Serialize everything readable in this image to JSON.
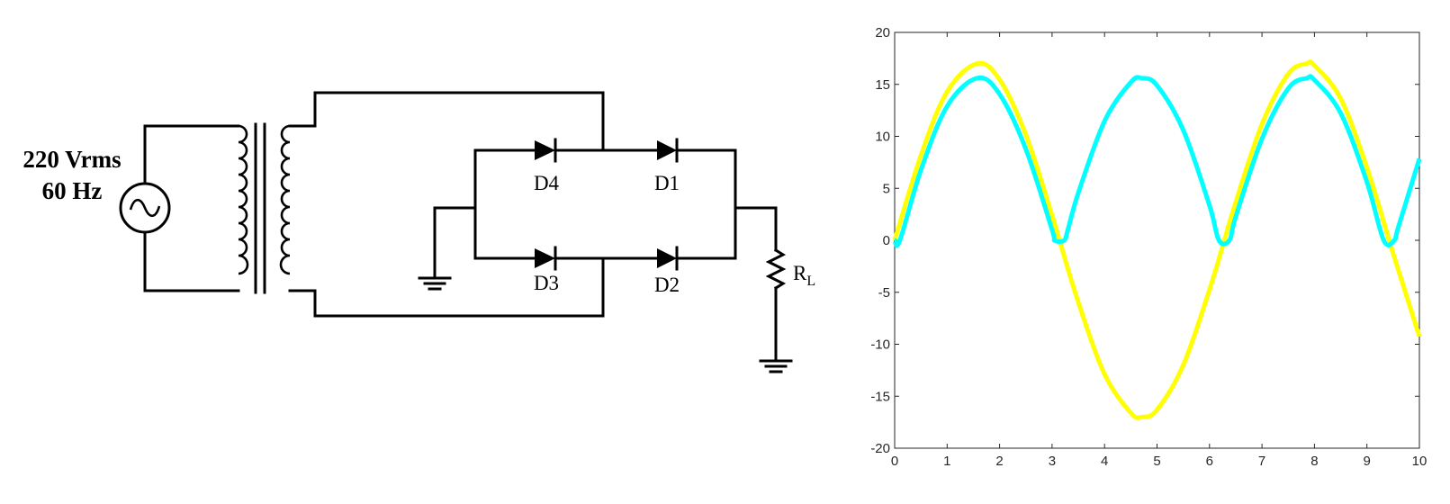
{
  "circuit": {
    "source_voltage": "220 Vrms",
    "source_frequency": "60 Hz",
    "diodes": [
      "D4",
      "D1",
      "D3",
      "D2"
    ],
    "load_label_main": "R",
    "load_label_sub": "L"
  },
  "chart_data": {
    "type": "line",
    "title": "",
    "xlabel": "",
    "ylabel": "",
    "xlim": [
      0,
      10
    ],
    "ylim": [
      -20,
      20
    ],
    "xticks": [
      0,
      1,
      2,
      3,
      4,
      5,
      6,
      7,
      8,
      9,
      10
    ],
    "yticks": [
      20,
      15,
      10,
      5,
      0,
      -5,
      -10,
      -15,
      -20
    ],
    "grid": false,
    "series": [
      {
        "color": "#ffff00",
        "x": [
          0,
          0.5,
          1,
          1.5708,
          2,
          2.5,
          3,
          3.1416,
          3.5,
          4,
          4.5,
          4.7124,
          5,
          5.5,
          6,
          6.2832,
          6.5,
          7,
          7.5,
          7.854,
          8,
          8.5,
          9,
          9.4248,
          9.5,
          10
        ],
        "y": [
          0,
          8.15,
          14.3,
          17.0,
          15.46,
          10.17,
          2.4,
          0,
          -5.96,
          -12.87,
          -16.6,
          -17.0,
          -16.3,
          -12.0,
          -4.75,
          0,
          3.66,
          11.17,
          16.0,
          17.0,
          16.82,
          13.63,
          7.0,
          0,
          -1.27,
          -9.25
        ]
      },
      {
        "color": "#00ffff",
        "x": [
          0,
          0.1,
          0.5,
          1,
          1.5708,
          2,
          2.5,
          3.0,
          3.05,
          3.23,
          3.3,
          3.5,
          4,
          4.5,
          4.7124,
          5,
          5.5,
          6,
          6.18,
          6.38,
          6.5,
          7,
          7.5,
          7.854,
          8,
          8.5,
          9,
          9.32,
          9.52,
          9.6,
          10
        ],
        "y": [
          0,
          0,
          6.75,
          12.9,
          15.6,
          14.06,
          8.77,
          1.0,
          0,
          0,
          1.0,
          4.56,
          11.47,
          15.2,
          15.6,
          14.9,
          10.6,
          3.35,
          0,
          0,
          2.26,
          9.77,
          14.6,
          15.6,
          15.42,
          12.23,
          5.6,
          0,
          0,
          1.29,
          7.85
        ]
      }
    ]
  }
}
